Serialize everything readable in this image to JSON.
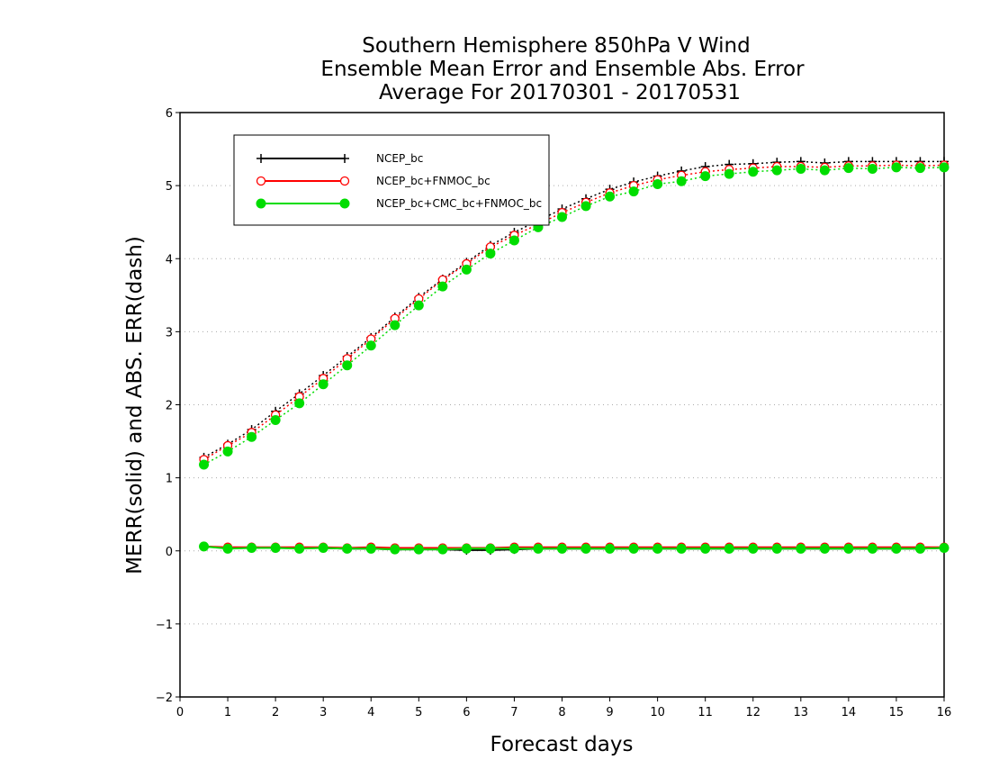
{
  "chart_data": {
    "type": "line",
    "title": [
      "Southern Hemisphere 850hPa V Wind",
      "Ensemble Mean Error and Ensemble Abs. Error",
      "Average For 20170301 - 20170531"
    ],
    "xlabel": "Forecast days",
    "ylabel": "MERR(solid) and ABS. ERR(dash)",
    "xlim": [
      0,
      16
    ],
    "ylim": [
      -2,
      6
    ],
    "xticks": [
      0,
      1,
      2,
      3,
      4,
      5,
      6,
      7,
      8,
      9,
      10,
      11,
      12,
      13,
      14,
      15,
      16
    ],
    "yticks": [
      -2,
      -1,
      0,
      1,
      2,
      3,
      4,
      5,
      6
    ],
    "ytick_labels": [
      "−2",
      "−1",
      "0",
      "1",
      "2",
      "3",
      "4",
      "5",
      "6"
    ],
    "grid": "horizontal dotted",
    "legend_position": "top-left",
    "x": [
      0.5,
      1,
      1.5,
      2,
      2.5,
      3,
      3.5,
      4,
      4.5,
      5,
      5.5,
      6,
      6.5,
      7,
      7.5,
      8,
      8.5,
      9,
      9.5,
      10,
      10.5,
      11,
      11.5,
      12,
      12.5,
      13,
      13.5,
      14,
      14.5,
      15,
      15.5,
      16
    ],
    "series": [
      {
        "name": "NCEP_bc",
        "color": "#000000",
        "marker": "plus",
        "merr": [
          0.06,
          0.04,
          0.05,
          0.04,
          0.04,
          0.04,
          0.03,
          0.03,
          0.02,
          0.02,
          0.02,
          0.01,
          0.01,
          0.02,
          0.03,
          0.03,
          0.03,
          0.03,
          0.03,
          0.03,
          0.03,
          0.03,
          0.03,
          0.03,
          0.03,
          0.03,
          0.03,
          0.03,
          0.03,
          0.03,
          0.03,
          0.04
        ],
        "abs_err": [
          1.28,
          1.46,
          1.66,
          1.91,
          2.15,
          2.4,
          2.66,
          2.92,
          3.2,
          3.47,
          3.72,
          3.95,
          4.18,
          4.36,
          4.52,
          4.68,
          4.82,
          4.95,
          5.05,
          5.13,
          5.2,
          5.26,
          5.29,
          5.3,
          5.32,
          5.33,
          5.31,
          5.33,
          5.33,
          5.33,
          5.33,
          5.33
        ]
      },
      {
        "name": "NCEP_bc+FNMOC_bc",
        "color": "#ff0000",
        "marker": "open-circle",
        "merr": [
          0.06,
          0.05,
          0.05,
          0.05,
          0.05,
          0.05,
          0.04,
          0.05,
          0.04,
          0.04,
          0.04,
          0.04,
          0.04,
          0.05,
          0.05,
          0.05,
          0.05,
          0.05,
          0.05,
          0.05,
          0.05,
          0.05,
          0.05,
          0.05,
          0.05,
          0.05,
          0.05,
          0.05,
          0.05,
          0.05,
          0.05,
          0.05
        ],
        "abs_err": [
          1.25,
          1.44,
          1.62,
          1.86,
          2.11,
          2.36,
          2.63,
          2.9,
          3.18,
          3.45,
          3.71,
          3.93,
          4.16,
          4.32,
          4.47,
          4.63,
          4.77,
          4.9,
          5.0,
          5.08,
          5.14,
          5.19,
          5.22,
          5.24,
          5.26,
          5.26,
          5.25,
          5.27,
          5.27,
          5.28,
          5.27,
          5.28
        ]
      },
      {
        "name": "NCEP_bc+CMC_bc+FNMOC_bc",
        "color": "#00dd00",
        "marker": "filled-circle",
        "merr": [
          0.06,
          0.03,
          0.04,
          0.04,
          0.03,
          0.04,
          0.03,
          0.03,
          0.02,
          0.02,
          0.02,
          0.03,
          0.03,
          0.03,
          0.03,
          0.03,
          0.03,
          0.03,
          0.03,
          0.03,
          0.03,
          0.03,
          0.03,
          0.03,
          0.03,
          0.03,
          0.03,
          0.03,
          0.03,
          0.03,
          0.03,
          0.04
        ],
        "abs_err": [
          1.18,
          1.36,
          1.56,
          1.79,
          2.02,
          2.28,
          2.54,
          2.81,
          3.09,
          3.36,
          3.62,
          3.85,
          4.07,
          4.25,
          4.43,
          4.57,
          4.72,
          4.85,
          4.92,
          5.02,
          5.06,
          5.13,
          5.16,
          5.19,
          5.21,
          5.23,
          5.21,
          5.24,
          5.23,
          5.25,
          5.24,
          5.25
        ]
      }
    ]
  }
}
